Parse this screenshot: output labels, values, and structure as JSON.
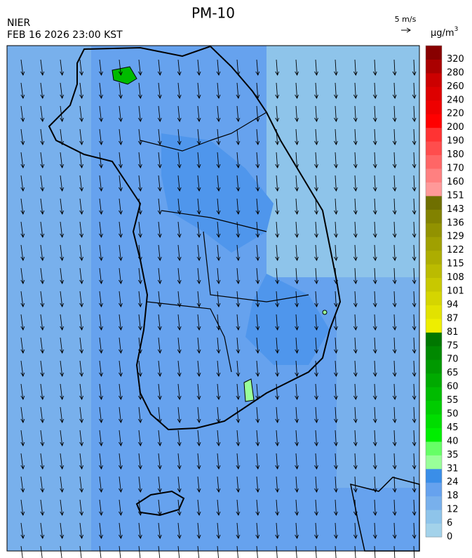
{
  "header": {
    "title": "PM-10",
    "agency": "NIER",
    "timestamp": "FEB 16 2026 23:00 KST"
  },
  "wind_scale": {
    "label": "5 m/s"
  },
  "legend": {
    "unit": {
      "base": "μg/m",
      "sup": "3"
    },
    "items": [
      {
        "label": 0,
        "color": "#a3d2ea"
      },
      {
        "label": 6,
        "color": "#8ec4ea"
      },
      {
        "label": 12,
        "color": "#78b0ec"
      },
      {
        "label": 18,
        "color": "#66a2ee"
      },
      {
        "label": 24,
        "color": "#3a8ee8"
      },
      {
        "label": 31,
        "color": "#99ff99"
      },
      {
        "label": 35,
        "color": "#66ff66"
      },
      {
        "label": 40,
        "color": "#00ee00"
      },
      {
        "label": 45,
        "color": "#00dd00"
      },
      {
        "label": 50,
        "color": "#00cc00"
      },
      {
        "label": 55,
        "color": "#00bb00"
      },
      {
        "label": 60,
        "color": "#00aa00"
      },
      {
        "label": 65,
        "color": "#009900"
      },
      {
        "label": 70,
        "color": "#008800"
      },
      {
        "label": 75,
        "color": "#007700"
      },
      {
        "label": 81,
        "color": "#eeee00"
      },
      {
        "label": 87,
        "color": "#e2e200"
      },
      {
        "label": 94,
        "color": "#d5d500"
      },
      {
        "label": 101,
        "color": "#c8c800"
      },
      {
        "label": 108,
        "color": "#bbbb00"
      },
      {
        "label": 115,
        "color": "#adad00"
      },
      {
        "label": 122,
        "color": "#a0a000"
      },
      {
        "label": 129,
        "color": "#929200"
      },
      {
        "label": 136,
        "color": "#828200"
      },
      {
        "label": 143,
        "color": "#6f6f00"
      },
      {
        "label": 151,
        "color": "#ff9999"
      },
      {
        "label": 160,
        "color": "#ff8080"
      },
      {
        "label": 170,
        "color": "#ff6666"
      },
      {
        "label": 180,
        "color": "#ff4d4d"
      },
      {
        "label": 190,
        "color": "#ff3333"
      },
      {
        "label": 200,
        "color": "#ff0000"
      },
      {
        "label": 220,
        "color": "#ee0000"
      },
      {
        "label": 240,
        "color": "#dd0000"
      },
      {
        "label": 260,
        "color": "#cc0000"
      },
      {
        "label": 280,
        "color": "#aa0000"
      },
      {
        "label": 320,
        "color": "#880000"
      }
    ]
  }
}
